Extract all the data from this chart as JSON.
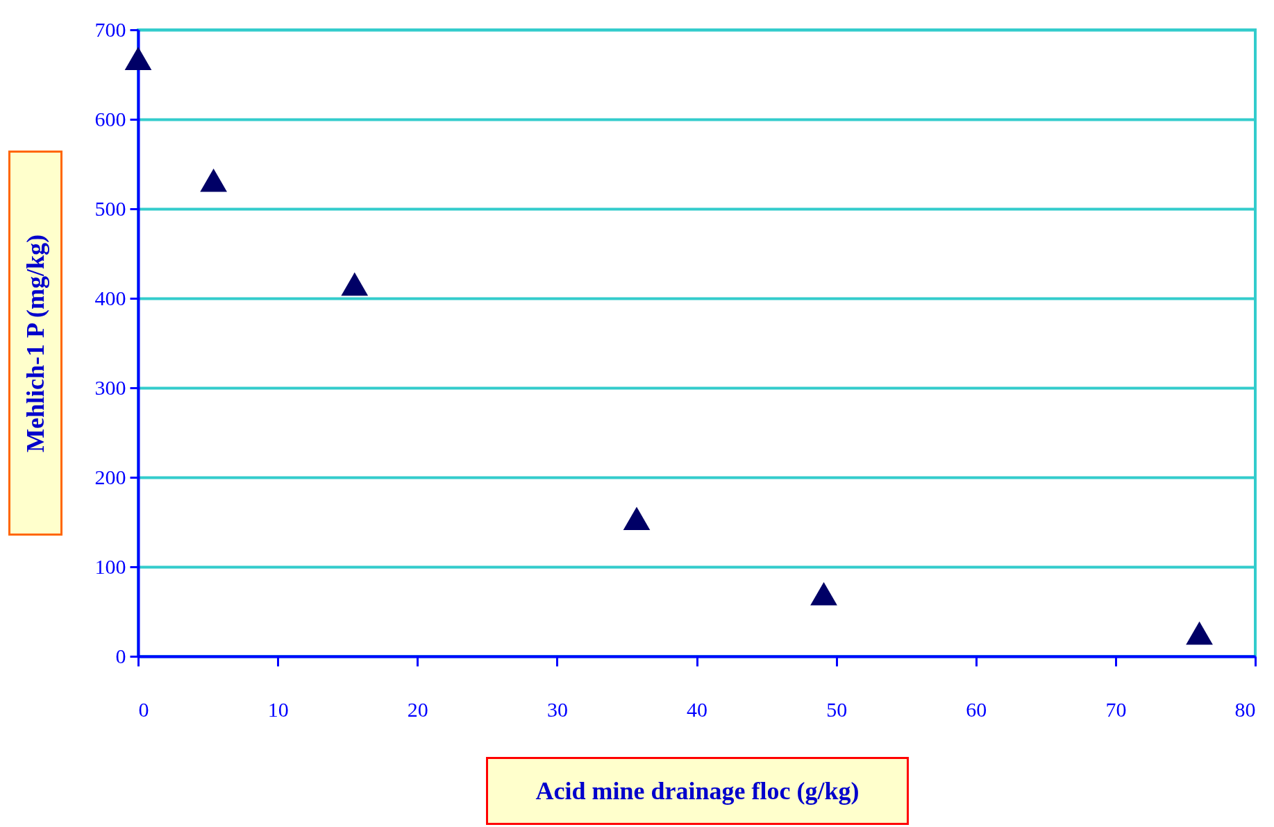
{
  "chart_data": {
    "type": "scatter",
    "xlabel": "Acid mine drainage floc (g/kg)",
    "ylabel": "Mehlich-1 P (mg/kg)",
    "x": [
      0,
      5.4,
      15.5,
      35.7,
      49.1,
      76
    ],
    "series": [
      {
        "color": "#000066",
        "values": [
          668,
          532,
          416,
          154,
          70,
          26
        ]
      }
    ],
    "xlim": [
      0,
      80
    ],
    "xticks": [
      0,
      10,
      20,
      30,
      40,
      50,
      60,
      70,
      80
    ],
    "ylim": [
      0,
      700
    ],
    "yticks": [
      0,
      100,
      200,
      300,
      400,
      500,
      600,
      700
    ],
    "grid": "y",
    "marker": "triangle",
    "legend": false
  }
}
